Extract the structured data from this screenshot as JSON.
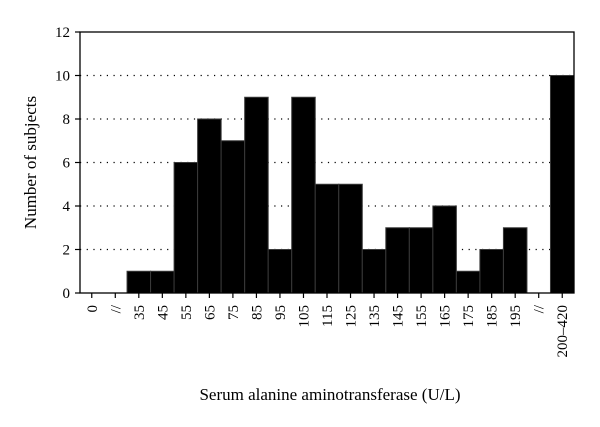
{
  "chart_data": {
    "type": "bar",
    "title": "",
    "xlabel": "Serum alanine aminotransferase (U/L)",
    "ylabel": "Number of subjects",
    "ylim": [
      0,
      12
    ],
    "yticks": [
      0,
      2,
      4,
      6,
      8,
      10,
      12
    ],
    "grid": true,
    "legend": "none",
    "categories": [
      "0",
      "//",
      "35",
      "45",
      "55",
      "65",
      "75",
      "85",
      "95",
      "105",
      "115",
      "125",
      "135",
      "145",
      "155",
      "165",
      "175",
      "185",
      "195",
      "//",
      "200–420"
    ],
    "values": [
      0,
      0,
      1,
      1,
      6,
      8,
      7,
      9,
      2,
      9,
      5,
      5,
      2,
      3,
      3,
      4,
      1,
      2,
      3,
      0,
      10
    ],
    "bar_color": "#000000"
  }
}
